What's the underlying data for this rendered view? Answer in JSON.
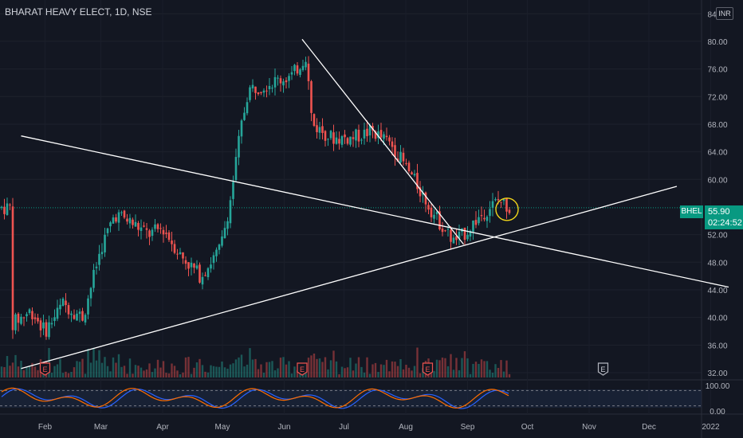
{
  "header": {
    "title": "BHARAT HEAVY ELECT, 1D, NSE",
    "currency": "INR"
  },
  "badges": {
    "symbol": "BHEL",
    "last_price": "55.90",
    "countdown": "02:24:52"
  },
  "chart_data": {
    "type": "candlestick",
    "y_axis": {
      "ticks": [
        "84.00",
        "80.00",
        "76.00",
        "72.00",
        "68.00",
        "64.00",
        "60.00",
        "52.00",
        "48.00",
        "44.00",
        "40.00",
        "36.00",
        "32.00"
      ],
      "ylim": [
        32,
        84.5
      ]
    },
    "x_axis": {
      "ticks": [
        "Feb",
        "Mar",
        "Apr",
        "May",
        "Jun",
        "Jul",
        "Aug",
        "Sep",
        "Oct",
        "Nov",
        "Dec",
        "2022"
      ]
    },
    "last_price": 55.9,
    "earnings_markers": [
      "E",
      "E",
      "E",
      "E"
    ],
    "trendlines": [
      {
        "x1": "2021-01-20",
        "y1": 66.3,
        "x2": "2022-01-10",
        "y2": 44.4
      },
      {
        "x1": "2021-01-20",
        "y1": 32.6,
        "x2": "2021-12-15",
        "y2": 59.0
      },
      {
        "x1": "2021-06-10",
        "y1": 80.3,
        "x2": "2021-08-30",
        "y2": 50.6
      }
    ],
    "highlight_circle": {
      "date": "2021-09-20",
      "price": 55.9
    },
    "oscillator": {
      "ticks": [
        "100.00",
        "0.00"
      ],
      "levels": [
        80,
        20
      ],
      "series": [
        {
          "color": "#2962ff"
        },
        {
          "color": "#ff6d00"
        }
      ]
    },
    "colors": {
      "up": "#26a69a",
      "down": "#ef5350",
      "background": "#131722"
    }
  }
}
